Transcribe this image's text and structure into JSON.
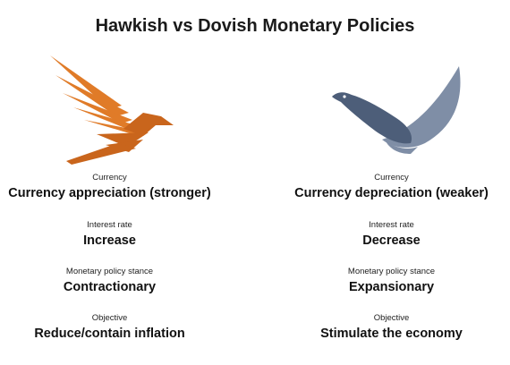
{
  "title": "Hawkish vs Dovish Monetary Policies",
  "colors": {
    "hawk": "#e07b28",
    "hawk_dark": "#c9651c",
    "dove": "#7f8ea6",
    "dove_dark": "#4d5e79"
  },
  "hawkish": {
    "icon": "hawk-icon",
    "rows": [
      {
        "label": "Currency",
        "value": "Currency appreciation (stronger)"
      },
      {
        "label": "Interest rate",
        "value": "Increase"
      },
      {
        "label": "Monetary policy stance",
        "value": "Contractionary"
      },
      {
        "label": "Objective",
        "value": "Reduce/contain inflation"
      }
    ]
  },
  "dovish": {
    "icon": "dove-icon",
    "rows": [
      {
        "label": "Currency",
        "value": "Currency depreciation (weaker)"
      },
      {
        "label": "Interest rate",
        "value": "Decrease"
      },
      {
        "label": "Monetary policy stance",
        "value": "Expansionary"
      },
      {
        "label": "Objective",
        "value": "Stimulate the economy"
      }
    ]
  }
}
